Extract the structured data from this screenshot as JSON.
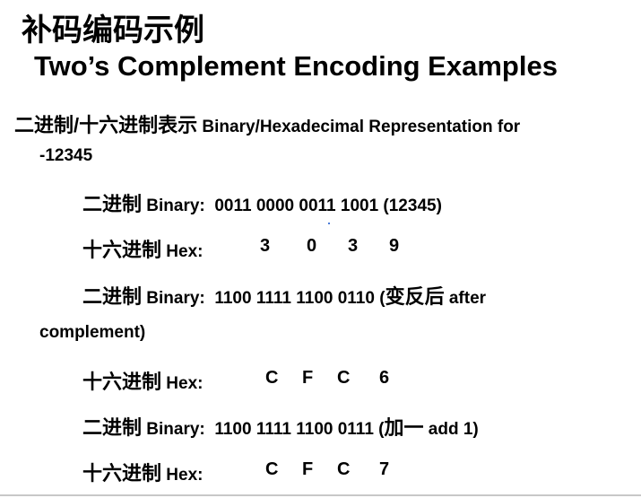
{
  "title_zh": "补码编码示例",
  "title_en": "Two’s Complement Encoding Examples",
  "intro": {
    "zh": "二进制/十六进制表示",
    "en": "Binary/Hexadecimal Representation for",
    "value": "-12345"
  },
  "rows": [
    {
      "zh": "二进制",
      "label": "Binary:",
      "value": "0011 0000 0011 1001 (12345)"
    },
    {
      "zh": "十六进制",
      "label": "Hex:",
      "digits": [
        "3",
        "0",
        "3",
        "9"
      ]
    },
    {
      "zh": "二进制",
      "label": "Binary:",
      "value": "1100 1111 1100 0110 (",
      "note_zh": "变反后",
      "note_en": " after",
      "cont": "complement)"
    },
    {
      "zh": "十六进制",
      "label": "Hex:",
      "digits": [
        "C",
        "F",
        "C",
        "6"
      ]
    },
    {
      "zh": "二进制",
      "label": "Binary:",
      "value": "1100 1111 1100 0111 (",
      "note_zh": "加一",
      "note_en": " add 1)"
    },
    {
      "zh": "十六进制",
      "label": "Hex:",
      "digits": [
        "C",
        "F",
        "C",
        "7"
      ]
    }
  ]
}
